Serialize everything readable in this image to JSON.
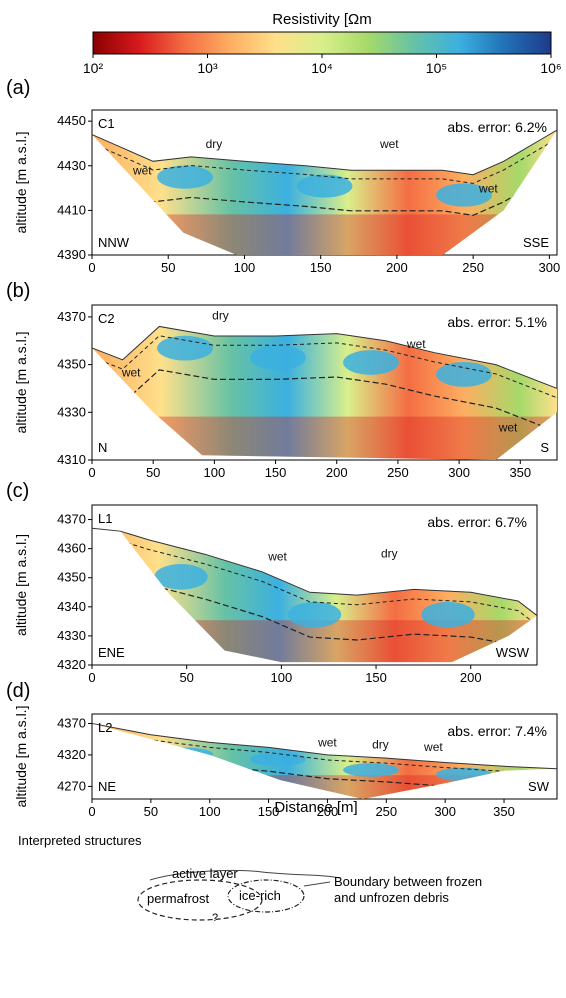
{
  "colorbar": {
    "title": "Resistivity [Ωm",
    "ticks": [
      "10²",
      "10³",
      "10⁴",
      "10⁵",
      "10⁶"
    ],
    "colors": [
      "#8b0000",
      "#d7191c",
      "#f46d43",
      "#fdae61",
      "#fee08b",
      "#d9ef8b",
      "#a6d96a",
      "#66c2a5",
      "#3bb0e0",
      "#2171b5",
      "#1f3a8a"
    ]
  },
  "shared": {
    "ylabel": "altitude [m a.s.l.]",
    "xlabel": "Distance [m]"
  },
  "chart_data": [
    {
      "type": "heatmap",
      "panel": "(a)",
      "profile": "C1",
      "error_text": "abs. error: 6.2%",
      "left_dir": "NNW",
      "right_dir": "SSE",
      "xlim": [
        0,
        305
      ],
      "ylim": [
        4390,
        4455
      ],
      "xticks": [
        0,
        50,
        100,
        150,
        200,
        250,
        300
      ],
      "yticks": [
        4390,
        4410,
        4430,
        4450
      ],
      "surface": [
        [
          0,
          4444
        ],
        [
          20,
          4438
        ],
        [
          40,
          4432
        ],
        [
          65,
          4434
        ],
        [
          100,
          4432
        ],
        [
          140,
          4430
        ],
        [
          170,
          4428
        ],
        [
          200,
          4428
        ],
        [
          230,
          4428
        ],
        [
          250,
          4426
        ],
        [
          270,
          4432
        ],
        [
          295,
          4442
        ],
        [
          305,
          4446
        ]
      ],
      "bottom": [
        [
          0,
          4444
        ],
        [
          60,
          4400
        ],
        [
          95,
          4390
        ],
        [
          230,
          4390
        ],
        [
          270,
          4410
        ],
        [
          305,
          4446
        ]
      ],
      "labels": [
        {
          "text": "dry",
          "x": 80,
          "y": 4438
        },
        {
          "text": "wet",
          "x": 33,
          "y": 4426
        },
        {
          "text": "wet",
          "x": 195,
          "y": 4438
        },
        {
          "text": "wet",
          "x": 260,
          "y": 4418
        }
      ]
    },
    {
      "type": "heatmap",
      "panel": "(b)",
      "profile": "C2",
      "error_text": "abs. error: 5.1%",
      "left_dir": "N",
      "right_dir": "S",
      "xlim": [
        0,
        380
      ],
      "ylim": [
        4310,
        4375
      ],
      "xticks": [
        0,
        50,
        100,
        150,
        200,
        250,
        300,
        350
      ],
      "yticks": [
        4310,
        4330,
        4350,
        4370
      ],
      "surface": [
        [
          0,
          4357
        ],
        [
          25,
          4352
        ],
        [
          55,
          4366
        ],
        [
          100,
          4362
        ],
        [
          150,
          4362
        ],
        [
          200,
          4363
        ],
        [
          240,
          4360
        ],
        [
          280,
          4355
        ],
        [
          330,
          4350
        ],
        [
          380,
          4340
        ]
      ],
      "bottom": [
        [
          0,
          4357
        ],
        [
          50,
          4330
        ],
        [
          90,
          4312
        ],
        [
          330,
          4310
        ],
        [
          380,
          4330
        ],
        [
          380,
          4340
        ]
      ],
      "labels": [
        {
          "text": "dry",
          "x": 105,
          "y": 4369
        },
        {
          "text": "wet",
          "x": 32,
          "y": 4345
        },
        {
          "text": "wet",
          "x": 265,
          "y": 4357
        },
        {
          "text": "wet",
          "x": 340,
          "y": 4322
        }
      ]
    },
    {
      "type": "heatmap",
      "panel": "(c)",
      "profile": "L1",
      "error_text": "abs. error: 6.7%",
      "left_dir": "ENE",
      "right_dir": "WSW",
      "xlim": [
        0,
        235
      ],
      "ylim": [
        4320,
        4375
      ],
      "xticks": [
        0,
        50,
        100,
        150,
        200
      ],
      "yticks": [
        4320,
        4330,
        4340,
        4350,
        4360,
        4370
      ],
      "surface": [
        [
          0,
          4367
        ],
        [
          15,
          4366
        ],
        [
          30,
          4363
        ],
        [
          60,
          4358
        ],
        [
          90,
          4352
        ],
        [
          115,
          4345
        ],
        [
          140,
          4344
        ],
        [
          170,
          4346
        ],
        [
          200,
          4345
        ],
        [
          225,
          4342
        ],
        [
          235,
          4337
        ]
      ],
      "bottom": [
        [
          15,
          4366
        ],
        [
          40,
          4345
        ],
        [
          70,
          4325
        ],
        [
          100,
          4321
        ],
        [
          190,
          4321
        ],
        [
          220,
          4330
        ],
        [
          235,
          4337
        ]
      ],
      "labels": [
        {
          "text": "wet",
          "x": 98,
          "y": 4356
        },
        {
          "text": "dry",
          "x": 157,
          "y": 4357
        }
      ]
    },
    {
      "type": "heatmap",
      "panel": "(d)",
      "profile": "L2",
      "error_text": "abs. error: 7.4%",
      "left_dir": "NE",
      "right_dir": "SW",
      "xlim": [
        0,
        395
      ],
      "ylim": [
        4250,
        4385
      ],
      "xticks": [
        0,
        50,
        100,
        150,
        200,
        250,
        300,
        350
      ],
      "yticks": [
        4270,
        4320,
        4370
      ],
      "surface": [
        [
          0,
          4370
        ],
        [
          50,
          4352
        ],
        [
          100,
          4340
        ],
        [
          150,
          4332
        ],
        [
          200,
          4320
        ],
        [
          250,
          4315
        ],
        [
          300,
          4308
        ],
        [
          350,
          4302
        ],
        [
          395,
          4298
        ]
      ],
      "bottom": [
        [
          0,
          4370
        ],
        [
          100,
          4320
        ],
        [
          160,
          4280
        ],
        [
          230,
          4250
        ],
        [
          300,
          4275
        ],
        [
          350,
          4295
        ],
        [
          395,
          4298
        ]
      ],
      "labels": [
        {
          "text": "wet",
          "x": 200,
          "y": 4333
        },
        {
          "text": "dry",
          "x": 245,
          "y": 4330
        },
        {
          "text": "wet",
          "x": 290,
          "y": 4326
        }
      ]
    }
  ],
  "legend": {
    "title": "Interpreted structures",
    "active_layer": "active layer",
    "permafrost": "permafrost",
    "ice_rich": "ice-rich",
    "boundary_line1": "Boundary between frozen",
    "boundary_line2": "and unfrozen debris",
    "question": "?"
  }
}
